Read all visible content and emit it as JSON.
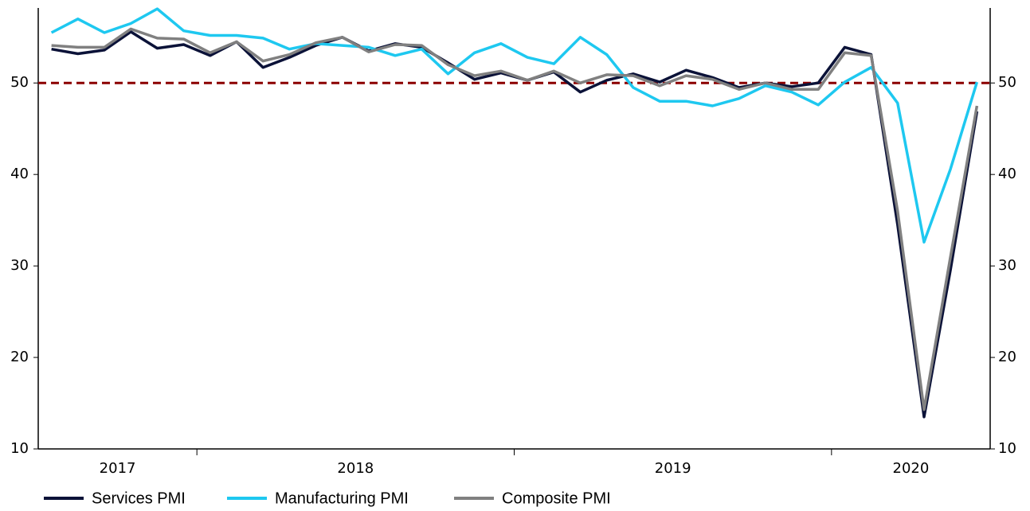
{
  "chart_data": {
    "type": "line",
    "categories": [
      null,
      null,
      null,
      null,
      null,
      null,
      null,
      null,
      null,
      null,
      null,
      null,
      null,
      null,
      null,
      null,
      null,
      null,
      null,
      null,
      null,
      null,
      null,
      null,
      null,
      null,
      null,
      null,
      null,
      null,
      null,
      null,
      null,
      null,
      null,
      null
    ],
    "x_groups": [
      {
        "label": "2017",
        "count": 6
      },
      {
        "label": "2018",
        "count": 12
      },
      {
        "label": "2019",
        "count": 12
      },
      {
        "label": "2020",
        "count": 6
      }
    ],
    "series": [
      {
        "name": "Services PMI",
        "color": "#0b1238",
        "values": [
          53.7,
          53.2,
          53.6,
          55.6,
          53.8,
          54.2,
          53.0,
          54.5,
          51.7,
          52.8,
          54.1,
          55.0,
          53.5,
          54.3,
          53.9,
          52.2,
          50.4,
          51.1,
          50.3,
          51.2,
          49.0,
          50.3,
          51.0,
          50.1,
          51.4,
          50.6,
          49.5,
          50.0,
          49.6,
          50.0,
          53.9,
          53.1,
          34.5,
          13.5,
          29.6,
          46.9
        ]
      },
      {
        "name": "Manufacturing PMI",
        "color": "#1ec8f0",
        "values": [
          55.5,
          57.0,
          55.5,
          56.5,
          58.1,
          55.7,
          55.2,
          55.2,
          54.9,
          53.7,
          54.3,
          54.1,
          53.9,
          53.0,
          53.7,
          51.0,
          53.3,
          54.3,
          52.8,
          52.1,
          55.0,
          53.1,
          49.5,
          48.0,
          48.0,
          47.5,
          48.3,
          49.7,
          49.0,
          47.6,
          50.1,
          51.7,
          47.8,
          32.6,
          40.6,
          50.1
        ]
      },
      {
        "name": "Composite PMI",
        "color": "#808080",
        "values": [
          54.1,
          53.9,
          53.9,
          55.9,
          54.9,
          54.8,
          53.3,
          54.5,
          52.4,
          53.1,
          54.4,
          55.0,
          53.4,
          54.2,
          54.1,
          52.0,
          50.8,
          51.3,
          50.3,
          51.3,
          50.0,
          50.9,
          50.8,
          49.7,
          50.8,
          50.4,
          49.3,
          50.0,
          49.3,
          49.3,
          53.3,
          53.0,
          36.0,
          14.3,
          31.0,
          47.5
        ]
      }
    ],
    "reference_line": {
      "value": 50,
      "color": "#8b0000"
    },
    "ylim": [
      10,
      58.2
    ],
    "yticks": [
      10,
      20,
      30,
      40,
      50
    ],
    "y2lim": [
      10,
      58.2
    ],
    "y2ticks": [
      10,
      20,
      30,
      40,
      50
    ]
  }
}
